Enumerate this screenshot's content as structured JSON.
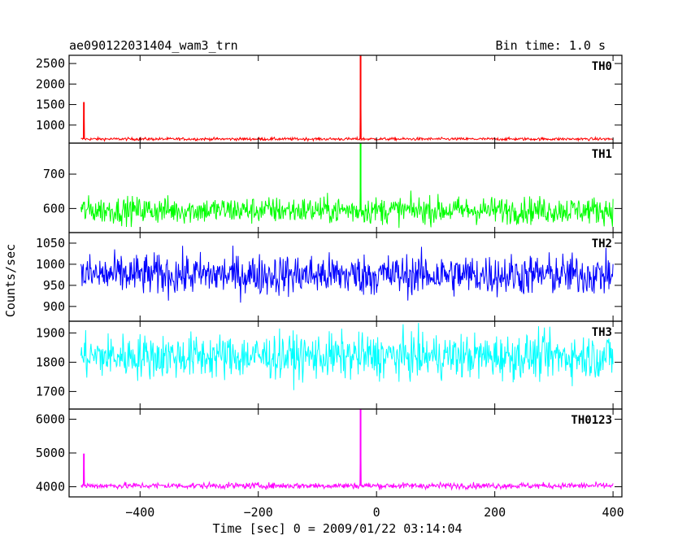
{
  "chart_data": {
    "type": "line",
    "title_left": "ae090122031404_wam3_trn",
    "title_right": "Bin time: 1.0 s",
    "xlabel": "Time [sec] 0 = 2009/01/22 03:14:04",
    "ylabel": "Counts/sec",
    "xlim": [
      -520,
      415
    ],
    "x_ticks": [
      -400,
      -200,
      0,
      200,
      400
    ],
    "x_tick_labels": [
      "−400",
      "−200",
      "0",
      "200",
      "400"
    ],
    "x_start": -500,
    "x_end": 400,
    "bin_time": 1.0,
    "grid": false,
    "panels": [
      {
        "name": "TH0",
        "color": "#ff0000",
        "ylim": [
          560,
          2700
        ],
        "ticks": [
          1000,
          1500,
          2000,
          2500
        ],
        "baseline": 660,
        "noise": 25,
        "spikes": [
          {
            "x": -495,
            "y": 1560
          },
          {
            "x": -27,
            "y": 2700
          }
        ]
      },
      {
        "name": "TH1",
        "color": "#00ff00",
        "ylim": [
          530,
          790
        ],
        "ticks": [
          600,
          700
        ],
        "baseline": 595,
        "noise": 28,
        "spikes": [
          {
            "x": -27,
            "y": 790
          }
        ]
      },
      {
        "name": "TH2",
        "color": "#0000ff",
        "ylim": [
          865,
          1075
        ],
        "ticks": [
          900,
          950,
          1000,
          1050
        ],
        "baseline": 975,
        "noise": 35,
        "spikes": []
      },
      {
        "name": "TH3",
        "color": "#00ffff",
        "ylim": [
          1640,
          1940
        ],
        "ticks": [
          1700,
          1800,
          1900
        ],
        "baseline": 1820,
        "noise": 55,
        "spikes": []
      },
      {
        "name": "TH0123",
        "color": "#ff00ff",
        "ylim": [
          3700,
          6300
        ],
        "ticks": [
          4000,
          5000,
          6000
        ],
        "baseline": 4030,
        "noise": 65,
        "spikes": [
          {
            "x": -495,
            "y": 4980
          },
          {
            "x": -27,
            "y": 6300
          }
        ]
      }
    ]
  }
}
